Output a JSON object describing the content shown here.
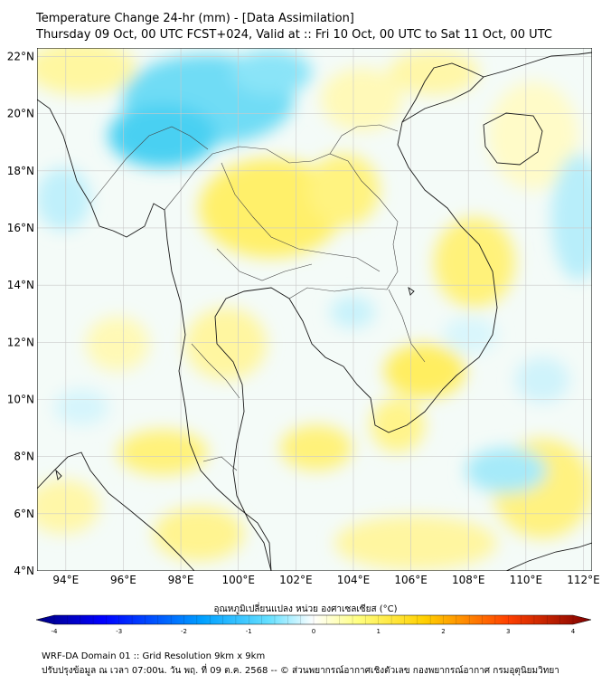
{
  "title": {
    "line1": "Temperature Change 24-hr (mm) - [Data Assimilation]",
    "line2": "Thursday 09 Oct, 00 UTC FCST+024, Valid at :: Fri 10 Oct, 00 UTC to Sat 11 Oct, 00 UTC"
  },
  "map": {
    "lat_ticks": [
      "22°N",
      "20°N",
      "18°N",
      "16°N",
      "14°N",
      "12°N",
      "10°N",
      "8°N",
      "6°N",
      "4°N"
    ],
    "lon_ticks": [
      "94°E",
      "96°E",
      "98°E",
      "100°E",
      "102°E",
      "104°E",
      "106°E",
      "108°E",
      "110°E",
      "112°E"
    ],
    "lat_range": [
      4,
      22.3
    ],
    "lon_range": [
      93,
      112.3
    ]
  },
  "colorbar": {
    "title": "อุณหภูมิเปลี่ยนแปลง หน่วย องศาเซลเซียส (°C)",
    "tick_labels": [
      "-4",
      "-3",
      "-2",
      "-1",
      "0",
      "1",
      "2",
      "3",
      "4"
    ],
    "range": [
      -4,
      4
    ],
    "colors": {
      "min": "#00007f",
      "neg_mid": "#00bfff",
      "zero": "#ffffff",
      "pos_mid": "#ffff66",
      "max": "#7f0000"
    }
  },
  "footer": {
    "line1": "WRF-DA Domain 01 :: Grid Resolution 9km x 9km",
    "line2": "ปรับปรุงข้อมูล ณ เวลา 07:00น. วัน พฤ. ที่ 09 ต.ค. 2568 -- © ส่วนพยากรณ์อากาศเชิงตัวเลข กองพยากรณ์อากาศ กรมอุตุนิยมวิทยา"
  }
}
